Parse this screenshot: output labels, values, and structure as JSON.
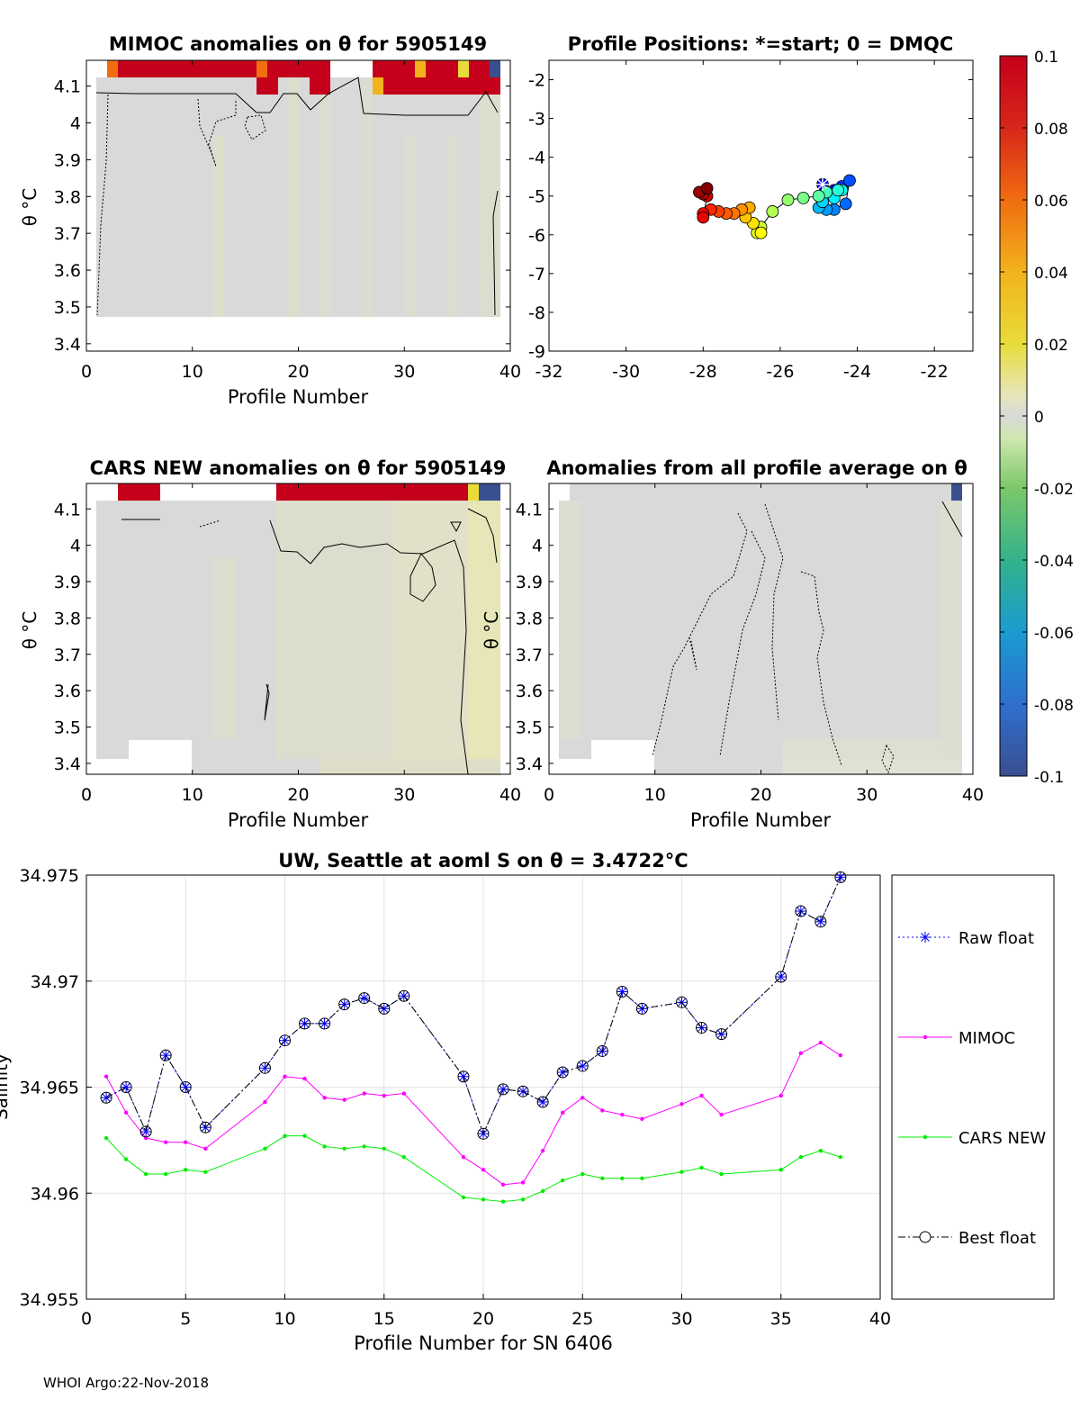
{
  "chart_data": [
    {
      "id": "mimoc",
      "type": "heatmap",
      "title": "MIMOC anomalies on θ  for 5905149",
      "xlabel": "Profile Number",
      "ylabel": "θ °C",
      "xlim": [
        0,
        40
      ],
      "ylim": [
        3.38,
        4.17
      ],
      "xticks": [
        0,
        10,
        20,
        30,
        40
      ],
      "yticks": [
        3.4,
        3.5,
        3.6,
        3.7,
        3.8,
        3.9,
        4,
        4.1
      ],
      "data_range": {
        "x": [
          1,
          39
        ],
        "y": [
          3.47,
          4.17
        ]
      },
      "notes": "Mostly near-zero anomalies (grey); strong positive anomaly band (red, ~0.1) above θ=4.1°C"
    },
    {
      "id": "positions",
      "type": "scatter",
      "title": "Profile Positions: *=start; 0 = DMQC",
      "xlabel": "",
      "ylabel": "",
      "xlim": [
        -32,
        -21
      ],
      "ylim": [
        -9,
        -1.5
      ],
      "xticks": [
        -32,
        -30,
        -28,
        -26,
        -24,
        -22
      ],
      "yticks": [
        -2,
        -3,
        -4,
        -5,
        -6,
        -7,
        -8,
        -9
      ],
      "x": [
        -24.9,
        -24.6,
        -24.4,
        -24.2,
        -24.3,
        -24.6,
        -24.8,
        -25.0,
        -24.9,
        -24.6,
        -24.4,
        -24.5,
        -24.8,
        -25.0,
        -25.4,
        -25.8,
        -26.2,
        -26.5,
        -26.6,
        -26.5,
        -26.7,
        -26.9,
        -26.8,
        -27.0,
        -27.2,
        -27.4,
        -27.6,
        -27.8,
        -28.0,
        -28.0,
        -27.9,
        -28.0,
        -28.1,
        -27.9
      ],
      "y": [
        -4.7,
        -4.85,
        -4.75,
        -4.6,
        -5.2,
        -5.35,
        -5.35,
        -5.3,
        -5.15,
        -5.05,
        -4.85,
        -4.85,
        -4.9,
        -5.0,
        -5.05,
        -5.1,
        -5.4,
        -5.8,
        -5.95,
        -5.95,
        -5.7,
        -5.55,
        -5.3,
        -5.35,
        -5.45,
        -5.45,
        -5.4,
        -5.35,
        -5.45,
        -5.55,
        -5.0,
        -4.95,
        -4.9,
        -4.8
      ],
      "marker_start": "*",
      "colormap": "jet (start=blue, end=red)"
    },
    {
      "id": "cars",
      "type": "heatmap",
      "title": "CARS NEW anomalies on θ for 5905149",
      "xlabel": "Profile Number",
      "ylabel": "θ °C",
      "xlim": [
        0,
        40
      ],
      "ylim": [
        3.37,
        4.17
      ],
      "xticks": [
        0,
        10,
        20,
        30,
        40
      ],
      "yticks": [
        3.4,
        3.5,
        3.6,
        3.7,
        3.8,
        3.9,
        4,
        4.1
      ],
      "notes": "Near-zero to slightly negative anomalies; red positive band at top between profiles 3-7 and 18-36"
    },
    {
      "id": "allavg",
      "type": "heatmap",
      "title": "Anomalies from all profile average on θ",
      "xlabel": "Profile Number",
      "ylabel": "",
      "xlim": [
        0,
        40
      ],
      "ylim": [
        3.37,
        4.17
      ],
      "xticks": [
        0,
        10,
        20,
        30,
        40
      ],
      "yticks": [],
      "notes": "Anomalies near zero throughout"
    },
    {
      "id": "colorbar",
      "type": "colorbar",
      "ticks": [
        "0.1",
        "0.08",
        "0.06",
        "0.04",
        "0.02",
        "0",
        "-0.02",
        "-0.04",
        "-0.06",
        "-0.08",
        "-0.1"
      ],
      "range": [
        -0.1,
        0.1
      ]
    },
    {
      "id": "salinity",
      "type": "line",
      "title": "UW, Seattle at aoml S on θ = 3.4722°C",
      "xlabel": "Profile Number for SN 6406",
      "ylabel": "Salinity",
      "xlim": [
        0,
        40
      ],
      "ylim": [
        34.955,
        34.975
      ],
      "xticks": [
        0,
        5,
        10,
        15,
        20,
        25,
        30,
        35,
        40
      ],
      "yticks": [
        "34.955",
        "34.96",
        "34.965",
        "34.97",
        "34.975"
      ],
      "grid": true,
      "legend_position": "right-outside",
      "x": [
        1,
        2,
        3,
        4,
        5,
        6,
        9,
        10,
        11,
        12,
        13,
        14,
        15,
        16,
        19,
        20,
        21,
        22,
        23,
        24,
        25,
        26,
        27,
        28,
        30,
        31,
        32,
        35,
        36,
        37,
        38
      ],
      "series": [
        {
          "name": "Raw float",
          "color": "#0000ff",
          "values": [
            34.9645,
            34.965,
            34.9629,
            34.9665,
            34.965,
            34.9631,
            34.9659,
            34.9672,
            34.968,
            34.968,
            34.9689,
            34.9692,
            34.9687,
            34.9693,
            34.9655,
            34.9628,
            34.9649,
            34.9648,
            34.9643,
            34.9657,
            34.966,
            34.9667,
            34.9695,
            34.9687,
            34.969,
            34.9678,
            34.9675,
            34.9702,
            34.9733,
            34.9728,
            34.9749
          ]
        },
        {
          "name": "MIMOC",
          "color": "#ff00ff",
          "values": [
            34.9655,
            34.9638,
            34.9626,
            34.9624,
            34.9624,
            34.9621,
            34.9643,
            34.9655,
            34.9654,
            34.9645,
            34.9644,
            34.9647,
            34.9646,
            34.9647,
            34.9617,
            34.9611,
            34.9604,
            34.9605,
            34.962,
            34.9638,
            34.9645,
            34.9639,
            34.9637,
            34.9635,
            34.9642,
            34.9646,
            34.9637,
            34.9646,
            34.9666,
            34.9671,
            34.9665
          ]
        },
        {
          "name": "CARS NEW",
          "color": "#00ee00",
          "values": [
            34.9626,
            34.9616,
            34.9609,
            34.9609,
            34.9611,
            34.961,
            34.9621,
            34.9627,
            34.9627,
            34.9622,
            34.9621,
            34.9622,
            34.9621,
            34.9617,
            34.9598,
            34.9597,
            34.9596,
            34.9597,
            34.9601,
            34.9606,
            34.9609,
            34.9607,
            34.9607,
            34.9607,
            34.961,
            34.9612,
            34.9609,
            34.9611,
            34.9617,
            34.962,
            34.9617
          ]
        },
        {
          "name": "Best float",
          "color": "#000000",
          "values": [
            34.9645,
            34.965,
            34.9629,
            34.9665,
            34.965,
            34.9631,
            34.9659,
            34.9672,
            34.968,
            34.968,
            34.9689,
            34.9692,
            34.9687,
            34.9693,
            34.9655,
            34.9628,
            34.9649,
            34.9648,
            34.9643,
            34.9657,
            34.966,
            34.9667,
            34.9695,
            34.9687,
            34.969,
            34.9678,
            34.9675,
            34.9702,
            34.9733,
            34.9728,
            34.9749
          ]
        }
      ]
    }
  ],
  "footer": "WHOI Argo:22-Nov-2018"
}
